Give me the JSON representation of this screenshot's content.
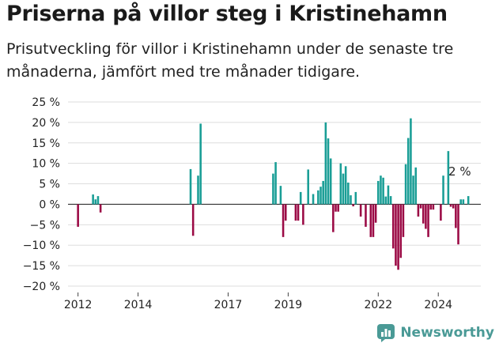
{
  "title": "Priserna på villor steg i Kristinehamn",
  "subtitle": "Prisutveckling för villor i Kristinehamn under de senaste tre månaderna, jämfört med tre månader tidigare.",
  "brand": "Newsworthy",
  "colors": {
    "positive": "#1a9e96",
    "negative": "#9b0a45",
    "grid": "#dddddd",
    "axis": "#444444",
    "brand": "#4a9a96"
  },
  "chart_data": {
    "type": "bar",
    "ylim": [
      -20,
      25
    ],
    "yticks": [
      -20,
      -15,
      -10,
      -5,
      0,
      5,
      10,
      15,
      20,
      25
    ],
    "ytick_labels": [
      "−20 %",
      "−15 %",
      "−10 %",
      "−5 %",
      "0 %",
      "5 %",
      "10 %",
      "15 %",
      "20 %",
      "25 %"
    ],
    "xlim": [
      "2011-09",
      "2025-06"
    ],
    "xticks": [
      "2012-01",
      "2014-01",
      "2017-01",
      "2019-01",
      "2022-01",
      "2024-01"
    ],
    "xtick_labels": [
      "2012",
      "2014",
      "2017",
      "2019",
      "2022",
      "2024"
    ],
    "grid": true,
    "annotation": {
      "text": "2 %",
      "x": "2025-02",
      "y": 2
    },
    "series": [
      {
        "x": [
          "2012-01",
          "2012-07",
          "2012-08",
          "2012-09",
          "2012-10",
          "2015-10",
          "2015-11",
          "2016-01",
          "2016-02",
          "2018-07",
          "2018-08",
          "2018-10",
          "2018-11",
          "2018-12",
          "2019-04",
          "2019-05",
          "2019-06",
          "2019-07",
          "2019-09",
          "2019-11",
          "2020-01",
          "2020-02",
          "2020-03",
          "2020-04",
          "2020-05",
          "2020-06",
          "2020-07",
          "2020-08",
          "2020-09",
          "2020-10",
          "2020-11",
          "2020-12",
          "2021-01",
          "2021-02",
          "2021-03",
          "2021-04",
          "2021-06",
          "2021-08",
          "2021-10",
          "2021-11",
          "2021-12",
          "2022-01",
          "2022-02",
          "2022-03",
          "2022-04",
          "2022-05",
          "2022-06",
          "2022-07",
          "2022-08",
          "2022-09",
          "2022-10",
          "2022-11",
          "2022-12",
          "2023-01",
          "2023-02",
          "2023-03",
          "2023-04",
          "2023-05",
          "2023-06",
          "2023-07",
          "2023-08",
          "2023-09",
          "2023-10",
          "2023-11",
          "2024-02",
          "2024-03",
          "2024-05",
          "2024-06",
          "2024-07",
          "2024-08",
          "2024-09",
          "2024-10",
          "2024-11",
          "2025-01"
        ],
        "values": [
          -5.5,
          2.4,
          1.2,
          2.0,
          -2.0,
          8.6,
          -7.7,
          7.0,
          19.7,
          7.5,
          10.3,
          4.5,
          -8.0,
          -4.0,
          -4.0,
          -4.0,
          3.0,
          -5.0,
          8.5,
          2.5,
          3.4,
          4.3,
          5.7,
          20.0,
          16.1,
          11.2,
          -6.8,
          -1.8,
          -1.8,
          10.0,
          7.5,
          9.3,
          5.3,
          2.2,
          -0.5,
          3.0,
          -3.0,
          -5.5,
          -8.0,
          -8.0,
          -4.5,
          5.7,
          7.0,
          6.5,
          1.9,
          4.6,
          2.0,
          -10.8,
          -15.0,
          -16.0,
          -13.1,
          -8.0,
          9.8,
          16.2,
          21.0,
          7.0,
          9.0,
          -3.0,
          -1.0,
          -4.7,
          -6.0,
          -8.0,
          -1.3,
          -1.3,
          -4.0,
          7.0,
          13.0,
          -0.6,
          -1.0,
          -5.8,
          -9.8,
          1.2,
          1.2,
          2.0
        ]
      }
    ]
  }
}
